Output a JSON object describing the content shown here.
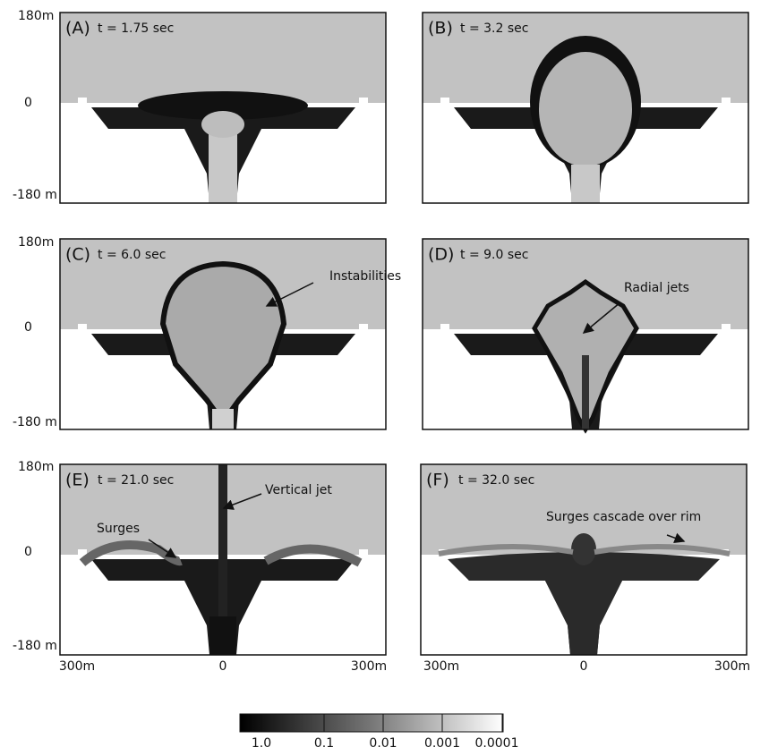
{
  "panels": [
    {
      "label": "(A)",
      "time": "t = 1.75 sec"
    },
    {
      "label": "(B)",
      "time": "t = 3.2 sec"
    },
    {
      "label": "(C)",
      "time": "t = 6.0 sec",
      "annotation": "Instabilities"
    },
    {
      "label": "(D)",
      "time": "t = 9.0 sec",
      "annotation": "Radial jets"
    },
    {
      "label": "(E)",
      "time": "t = 21.0 sec",
      "annotations": [
        "Surges",
        "Vertical jet"
      ]
    },
    {
      "label": "(F)",
      "time": "t = 32.0 sec",
      "annotation": "Surges cascade over rim"
    }
  ],
  "y_axis_labels": [
    "180m",
    "0",
    "-180 m"
  ],
  "x_axis_labels": [
    "300m",
    "0",
    "300m"
  ],
  "colorbar_labels": [
    "1.0",
    "0.1",
    "0.01",
    "0.001",
    "0.0001"
  ]
}
